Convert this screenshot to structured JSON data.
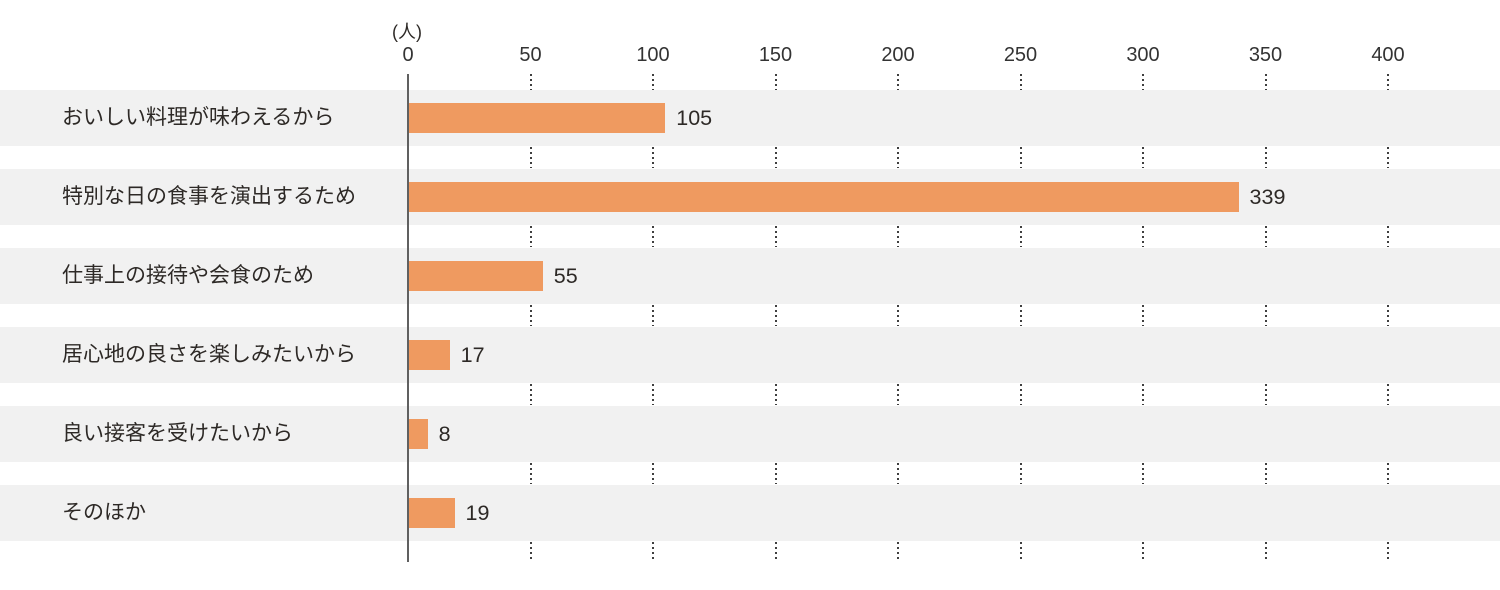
{
  "chart_data": {
    "type": "bar",
    "orientation": "horizontal",
    "unit_label": "(人)",
    "categories": [
      "おいしい料理が味わえるから",
      "特別な日の食事を演出するため",
      "仕事上の接待や会食のため",
      "居心地の良さを楽しみたいから",
      "良い接客を受けたいから",
      "そのほか"
    ],
    "values": [
      105,
      339,
      55,
      17,
      8,
      19
    ],
    "x_ticks": [
      0,
      50,
      100,
      150,
      200,
      250,
      300,
      350,
      400
    ],
    "xlim": [
      0,
      400
    ],
    "grid": "dotted-vertical-in-row-gaps",
    "legend": "none",
    "colors": {
      "bar": "#ef9a60",
      "row_stripe": "#f1f1f1",
      "axis_line": "#606060",
      "grid_dots": "#3f3f3f",
      "text": "#2d2926"
    }
  }
}
